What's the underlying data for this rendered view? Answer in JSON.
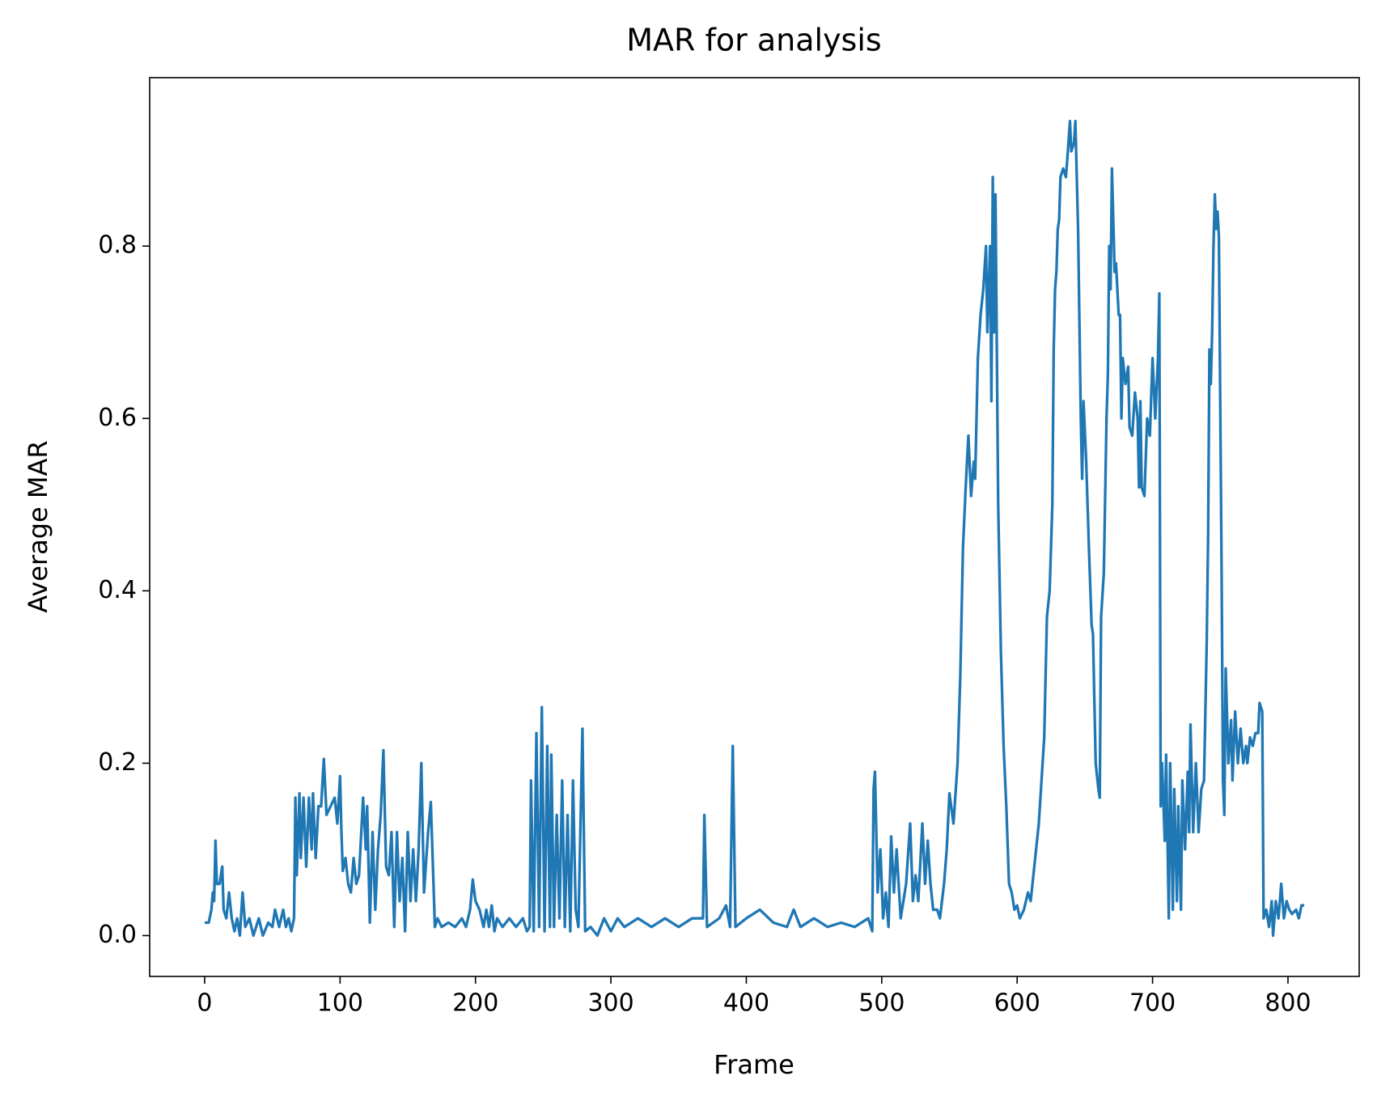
{
  "chart_data": {
    "type": "line",
    "title": "MAR for analysis",
    "x_label": "Frame",
    "y_label": "Average MAR",
    "xlim": [
      -40.6,
      852.6
    ],
    "ylim": [
      -0.0474,
      0.9954
    ],
    "xticks": [
      0,
      100,
      200,
      300,
      400,
      500,
      600,
      700,
      800
    ],
    "yticks": [
      {
        "value": 0,
        "label": "0.0"
      },
      0.2,
      0.4,
      0.6,
      0.8
    ],
    "grid": false,
    "series": [
      {
        "color": "#1f77b4",
        "x": [
          0,
          3,
          5,
          6,
          7,
          8,
          9,
          11,
          13,
          14,
          16,
          18,
          20,
          22,
          24,
          26,
          28,
          30,
          33,
          36,
          40,
          43,
          47,
          50,
          52,
          55,
          58,
          60,
          62,
          64,
          66,
          67,
          68,
          70,
          71,
          73,
          75,
          77,
          79,
          80,
          82,
          84,
          86,
          88,
          90,
          93,
          96,
          98,
          100,
          101,
          102,
          104,
          106,
          108,
          110,
          112,
          114,
          117,
          119,
          120,
          122,
          124,
          126,
          128,
          130,
          132,
          134,
          136,
          138,
          140,
          142,
          144,
          146,
          148,
          150,
          152,
          154,
          156,
          158,
          160,
          162,
          165,
          167,
          169,
          170,
          172,
          175,
          180,
          185,
          190,
          193,
          196,
          198,
          200,
          203,
          206,
          208,
          210,
          212,
          214,
          216,
          220,
          225,
          230,
          235,
          238,
          240,
          241,
          243,
          245,
          247,
          249,
          251,
          253,
          255,
          256,
          258,
          260,
          262,
          264,
          266,
          268,
          270,
          272,
          274,
          276,
          279,
          281,
          285,
          290,
          295,
          300,
          305,
          310,
          320,
          330,
          340,
          350,
          360,
          368,
          369,
          371,
          380,
          385,
          388,
          390,
          392,
          400,
          410,
          420,
          430,
          435,
          440,
          450,
          460,
          470,
          480,
          490,
          493,
          494,
          495,
          497,
          499,
          501,
          503,
          505,
          507,
          509,
          511,
          514,
          518,
          521,
          523,
          525,
          527,
          530,
          532,
          534,
          536,
          538,
          541,
          543,
          546,
          548,
          550,
          553,
          556,
          558,
          560,
          562,
          564,
          566,
          568,
          569,
          571,
          573,
          575,
          577,
          578,
          580,
          581,
          582,
          583,
          584,
          586,
          588,
          590,
          592,
          594,
          596,
          598,
          600,
          602,
          605,
          608,
          610,
          612,
          614,
          616,
          618,
          620,
          622,
          624,
          626,
          627,
          628,
          629,
          630,
          631,
          632,
          634,
          636,
          637,
          639,
          640,
          642,
          643,
          645,
          647,
          648,
          649,
          651,
          653,
          655,
          656,
          658,
          660,
          661,
          662,
          664,
          666,
          667,
          668,
          669,
          670,
          672,
          673,
          675,
          676,
          677,
          678,
          680,
          682,
          683,
          685,
          687,
          689,
          690,
          691,
          692,
          694,
          696,
          698,
          700,
          702,
          704,
          705,
          706,
          707,
          709,
          710,
          712,
          713,
          715,
          716,
          718,
          719,
          721,
          722,
          724,
          726,
          727,
          728,
          730,
          732,
          734,
          736,
          738,
          740,
          741,
          742,
          743,
          744,
          745,
          746,
          747,
          748,
          749,
          751,
          752,
          753,
          754,
          756,
          758,
          759,
          761,
          763,
          765,
          767,
          769,
          770,
          772,
          774,
          776,
          778,
          779,
          781,
          782,
          784,
          786,
          788,
          789,
          791,
          793,
          795,
          797,
          799,
          801,
          803,
          806,
          808,
          810,
          812
        ],
        "values": [
          0.015,
          0.015,
          0.03,
          0.05,
          0.04,
          0.11,
          0.06,
          0.06,
          0.08,
          0.03,
          0.02,
          0.05,
          0.02,
          0.005,
          0.02,
          0.0,
          0.05,
          0.01,
          0.02,
          0.0,
          0.02,
          0.0,
          0.015,
          0.01,
          0.03,
          0.01,
          0.03,
          0.01,
          0.02,
          0.005,
          0.02,
          0.16,
          0.07,
          0.165,
          0.09,
          0.16,
          0.08,
          0.16,
          0.1,
          0.165,
          0.09,
          0.15,
          0.15,
          0.205,
          0.14,
          0.15,
          0.16,
          0.13,
          0.185,
          0.12,
          0.075,
          0.09,
          0.06,
          0.05,
          0.09,
          0.06,
          0.07,
          0.16,
          0.1,
          0.15,
          0.015,
          0.12,
          0.03,
          0.1,
          0.14,
          0.215,
          0.08,
          0.07,
          0.12,
          0.01,
          0.12,
          0.04,
          0.09,
          0.005,
          0.12,
          0.04,
          0.1,
          0.04,
          0.1,
          0.2,
          0.05,
          0.12,
          0.155,
          0.06,
          0.01,
          0.02,
          0.01,
          0.015,
          0.01,
          0.02,
          0.01,
          0.03,
          0.065,
          0.04,
          0.03,
          0.01,
          0.03,
          0.01,
          0.035,
          0.005,
          0.02,
          0.01,
          0.02,
          0.01,
          0.02,
          0.005,
          0.01,
          0.18,
          0.005,
          0.235,
          0.01,
          0.265,
          0.005,
          0.22,
          0.01,
          0.21,
          0.01,
          0.14,
          0.02,
          0.18,
          0.01,
          0.14,
          0.005,
          0.18,
          0.03,
          0.01,
          0.24,
          0.005,
          0.01,
          0.0,
          0.02,
          0.005,
          0.02,
          0.01,
          0.02,
          0.01,
          0.02,
          0.01,
          0.02,
          0.02,
          0.14,
          0.01,
          0.02,
          0.035,
          0.01,
          0.22,
          0.01,
          0.02,
          0.03,
          0.015,
          0.01,
          0.03,
          0.01,
          0.02,
          0.01,
          0.015,
          0.01,
          0.02,
          0.005,
          0.17,
          0.19,
          0.05,
          0.1,
          0.02,
          0.05,
          0.01,
          0.115,
          0.05,
          0.1,
          0.02,
          0.06,
          0.13,
          0.04,
          0.07,
          0.04,
          0.13,
          0.06,
          0.11,
          0.06,
          0.03,
          0.03,
          0.02,
          0.06,
          0.1,
          0.165,
          0.13,
          0.2,
          0.3,
          0.45,
          0.52,
          0.58,
          0.51,
          0.55,
          0.53,
          0.67,
          0.72,
          0.75,
          0.8,
          0.7,
          0.8,
          0.62,
          0.88,
          0.7,
          0.86,
          0.5,
          0.33,
          0.22,
          0.15,
          0.06,
          0.05,
          0.03,
          0.035,
          0.02,
          0.03,
          0.05,
          0.04,
          0.07,
          0.1,
          0.13,
          0.18,
          0.23,
          0.37,
          0.4,
          0.5,
          0.68,
          0.75,
          0.77,
          0.82,
          0.83,
          0.88,
          0.89,
          0.88,
          0.9,
          0.945,
          0.91,
          0.92,
          0.945,
          0.82,
          0.6,
          0.53,
          0.62,
          0.55,
          0.45,
          0.36,
          0.35,
          0.2,
          0.17,
          0.16,
          0.37,
          0.42,
          0.6,
          0.65,
          0.8,
          0.75,
          0.89,
          0.77,
          0.78,
          0.72,
          0.72,
          0.6,
          0.67,
          0.64,
          0.66,
          0.59,
          0.58,
          0.63,
          0.6,
          0.52,
          0.62,
          0.52,
          0.51,
          0.6,
          0.58,
          0.67,
          0.6,
          0.67,
          0.745,
          0.15,
          0.2,
          0.11,
          0.21,
          0.02,
          0.2,
          0.03,
          0.17,
          0.04,
          0.15,
          0.03,
          0.18,
          0.1,
          0.19,
          0.12,
          0.245,
          0.12,
          0.2,
          0.12,
          0.17,
          0.18,
          0.34,
          0.46,
          0.68,
          0.64,
          0.7,
          0.8,
          0.86,
          0.82,
          0.84,
          0.81,
          0.42,
          0.18,
          0.14,
          0.31,
          0.2,
          0.25,
          0.18,
          0.26,
          0.2,
          0.24,
          0.2,
          0.22,
          0.2,
          0.23,
          0.22,
          0.235,
          0.235,
          0.27,
          0.26,
          0.02,
          0.03,
          0.01,
          0.04,
          0.0,
          0.04,
          0.02,
          0.06,
          0.02,
          0.04,
          0.03,
          0.025,
          0.03,
          0.02,
          0.035,
          0.035
        ]
      }
    ]
  }
}
